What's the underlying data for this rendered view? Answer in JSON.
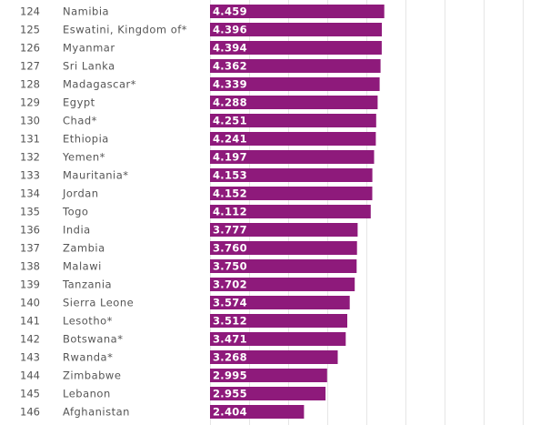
{
  "chart_data": {
    "type": "bar",
    "orientation": "horizontal",
    "title": "",
    "xlabel": "",
    "ylabel": "",
    "xlim": [
      0,
      8
    ],
    "grid": true,
    "bar_color": "#8E1A7B",
    "rows": [
      {
        "rank": "124",
        "country": "Namibia",
        "value": 4.459,
        "label": "4.459"
      },
      {
        "rank": "125",
        "country": "Eswatini, Kingdom of*",
        "value": 4.396,
        "label": "4.396"
      },
      {
        "rank": "126",
        "country": "Myanmar",
        "value": 4.394,
        "label": "4.394"
      },
      {
        "rank": "127",
        "country": "Sri Lanka",
        "value": 4.362,
        "label": "4.362"
      },
      {
        "rank": "128",
        "country": "Madagascar*",
        "value": 4.339,
        "label": "4.339"
      },
      {
        "rank": "129",
        "country": "Egypt",
        "value": 4.288,
        "label": "4.288"
      },
      {
        "rank": "130",
        "country": "Chad*",
        "value": 4.251,
        "label": "4.251"
      },
      {
        "rank": "131",
        "country": "Ethiopia",
        "value": 4.241,
        "label": "4.241"
      },
      {
        "rank": "132",
        "country": "Yemen*",
        "value": 4.197,
        "label": "4.197"
      },
      {
        "rank": "133",
        "country": "Mauritania*",
        "value": 4.153,
        "label": "4.153"
      },
      {
        "rank": "134",
        "country": "Jordan",
        "value": 4.152,
        "label": "4.152"
      },
      {
        "rank": "135",
        "country": "Togo",
        "value": 4.112,
        "label": "4.112"
      },
      {
        "rank": "136",
        "country": "India",
        "value": 3.777,
        "label": "3.777"
      },
      {
        "rank": "137",
        "country": "Zambia",
        "value": 3.76,
        "label": "3.760"
      },
      {
        "rank": "138",
        "country": "Malawi",
        "value": 3.75,
        "label": "3.750"
      },
      {
        "rank": "139",
        "country": "Tanzania",
        "value": 3.702,
        "label": "3.702"
      },
      {
        "rank": "140",
        "country": "Sierra Leone",
        "value": 3.574,
        "label": "3.574"
      },
      {
        "rank": "141",
        "country": "Lesotho*",
        "value": 3.512,
        "label": "3.512"
      },
      {
        "rank": "142",
        "country": "Botswana*",
        "value": 3.471,
        "label": "3.471"
      },
      {
        "rank": "143",
        "country": "Rwanda*",
        "value": 3.268,
        "label": "3.268"
      },
      {
        "rank": "144",
        "country": "Zimbabwe",
        "value": 2.995,
        "label": "2.995"
      },
      {
        "rank": "145",
        "country": "Lebanon",
        "value": 2.955,
        "label": "2.955"
      },
      {
        "rank": "146",
        "country": "Afghanistan",
        "value": 2.404,
        "label": "2.404"
      }
    ]
  }
}
